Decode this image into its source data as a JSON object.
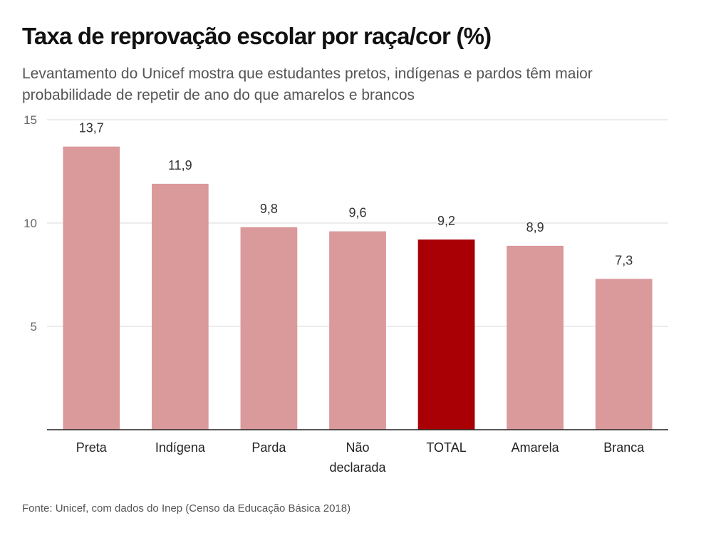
{
  "chart_data": {
    "type": "bar",
    "title": "Taxa de reprovação escolar por raça/cor (%)",
    "subtitle": "Levantamento do Unicef mostra que estudantes pretos, indígenas e pardos têm maior probabilidade de repetir de ano do que amarelos e brancos",
    "categories": [
      "Preta",
      "Indígena",
      "Parda",
      "Não declarada",
      "TOTAL",
      "Amarela",
      "Branca"
    ],
    "category_lines": [
      [
        "Preta"
      ],
      [
        "Indígena"
      ],
      [
        "Parda"
      ],
      [
        "Não",
        "declarada"
      ],
      [
        "TOTAL"
      ],
      [
        "Amarela"
      ],
      [
        "Branca"
      ]
    ],
    "values": [
      13.7,
      11.9,
      9.8,
      9.6,
      9.2,
      8.9,
      7.3
    ],
    "value_labels": [
      "13,7",
      "11,9",
      "9,8",
      "9,6",
      "9,2",
      "8,9",
      "7,3"
    ],
    "highlight_index": 4,
    "ylim": [
      0,
      15
    ],
    "yticks": [
      5,
      10,
      15
    ],
    "ytick_labels": [
      "5",
      "10",
      "15"
    ],
    "grid": true,
    "xlabel": "",
    "ylabel": "",
    "colors": {
      "bar": "#DA999B",
      "highlight": "#A80004",
      "grid": "#d9d9d9",
      "baseline": "#222222"
    },
    "source": "Fonte: Unicef, com dados do Inep (Censo da Educação Básica 2018)"
  }
}
